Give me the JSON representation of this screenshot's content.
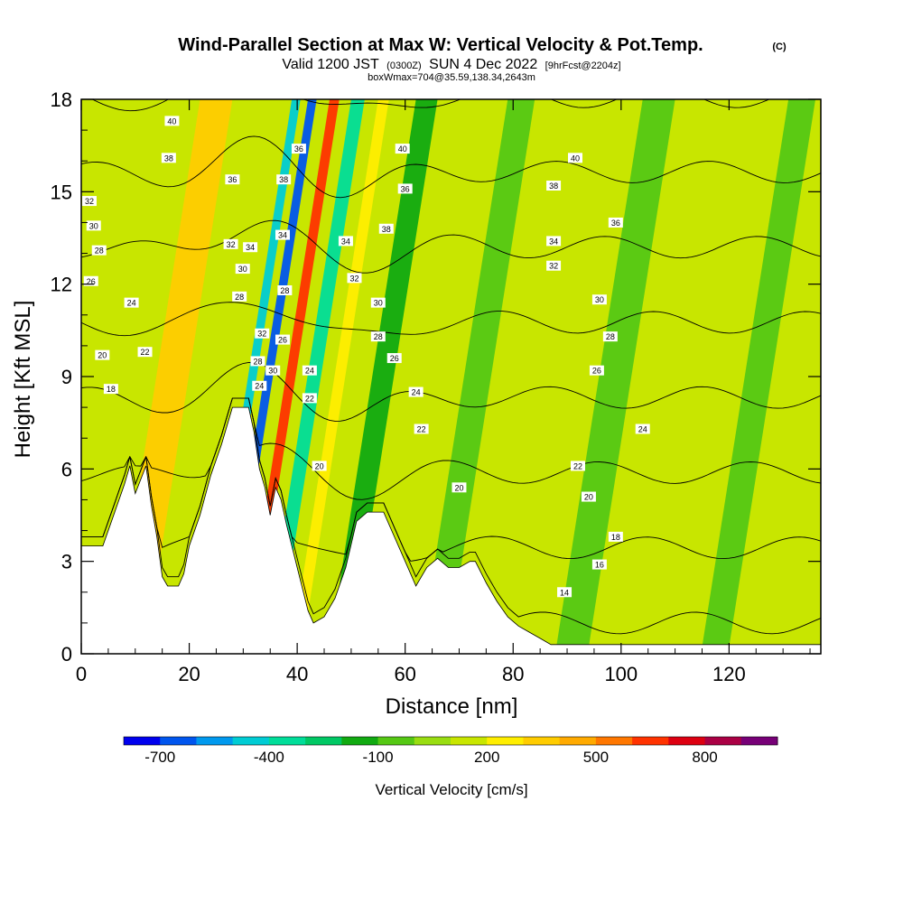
{
  "header": {
    "title_main": "Wind-Parallel Section at Max W: Vertical Velocity & Pot.Temp.",
    "title_mark": "(C)",
    "valid_a": "Valid 1200 JST",
    "valid_b": "(0300Z)",
    "valid_c": "SUN 4 Dec 2022",
    "valid_d": "[9hrFcst@2204z]",
    "boxline": "boxWmax=704@35.59,138.34,2643m"
  },
  "chart_data": {
    "type": "heatmap",
    "title": "Wind-Parallel Section at Max W: Vertical Velocity & Pot.Temp.",
    "xlabel": "Distance [nm]",
    "ylabel": "Height [Kft MSL]",
    "xlim": [
      0,
      137
    ],
    "ylim": [
      0,
      18
    ],
    "xticks": [
      "0",
      "20",
      "40",
      "60",
      "80",
      "100",
      "120"
    ],
    "yticks": [
      "0",
      "3",
      "6",
      "9",
      "12",
      "15",
      "18"
    ],
    "colorbar": {
      "label": "Vertical Velocity [cm/s]",
      "tick_labels": [
        "-700",
        "-400",
        "-100",
        "200",
        "500",
        "800"
      ],
      "colors": [
        "#0000ee",
        "#0055ee",
        "#0099ee",
        "#00ccd4",
        "#00dd99",
        "#00c864",
        "#11aa11",
        "#55c814",
        "#99dd11",
        "#c8e600",
        "#ffee00",
        "#ffcc00",
        "#ffaa00",
        "#ff7700",
        "#ff3300",
        "#dd0011",
        "#aa0044",
        "#770077"
      ]
    },
    "terrain": [
      [
        0,
        3.5
      ],
      [
        4,
        3.5
      ],
      [
        6,
        4.5
      ],
      [
        8,
        5.5
      ],
      [
        9,
        6.1
      ],
      [
        10,
        5.2
      ],
      [
        12,
        6.1
      ],
      [
        13,
        4.8
      ],
      [
        14,
        3.8
      ],
      [
        15,
        2.5
      ],
      [
        16,
        2.2
      ],
      [
        18,
        2.2
      ],
      [
        19,
        2.6
      ],
      [
        20,
        3.5
      ],
      [
        22,
        4.5
      ],
      [
        24,
        5.8
      ],
      [
        26,
        6.8
      ],
      [
        28,
        8.0
      ],
      [
        31,
        8.0
      ],
      [
        32,
        7.2
      ],
      [
        33,
        6.0
      ],
      [
        34,
        5.4
      ],
      [
        35,
        4.5
      ],
      [
        36,
        5.4
      ],
      [
        37,
        5.0
      ],
      [
        38,
        4.2
      ],
      [
        40,
        2.8
      ],
      [
        42,
        1.4
      ],
      [
        43,
        1.0
      ],
      [
        45,
        1.2
      ],
      [
        47,
        1.8
      ],
      [
        49,
        2.8
      ],
      [
        51,
        4.3
      ],
      [
        53,
        4.6
      ],
      [
        56,
        4.6
      ],
      [
        58,
        3.8
      ],
      [
        60,
        3.0
      ],
      [
        62,
        2.2
      ],
      [
        64,
        2.8
      ],
      [
        66,
        3.1
      ],
      [
        68,
        2.8
      ],
      [
        70,
        2.8
      ],
      [
        72,
        3.0
      ],
      [
        73,
        3.0
      ],
      [
        75,
        2.3
      ],
      [
        77,
        1.7
      ],
      [
        79,
        1.2
      ],
      [
        81,
        0.9
      ],
      [
        83,
        0.7
      ],
      [
        85,
        0.5
      ],
      [
        87,
        0.3
      ],
      [
        90,
        0.3
      ],
      [
        95,
        0.3
      ],
      [
        100,
        0.3
      ],
      [
        105,
        0.3
      ],
      [
        110,
        0.3
      ],
      [
        115,
        0.3
      ],
      [
        120,
        0.3
      ],
      [
        125,
        0.3
      ],
      [
        130,
        0.3
      ],
      [
        134,
        0.3
      ],
      [
        137,
        0.3
      ]
    ],
    "w_bands": [
      {
        "x": 13,
        "w": 6,
        "value": 300
      },
      {
        "x": 30,
        "w": 1.6,
        "value": -500
      },
      {
        "x": 33,
        "w": 1.6,
        "value": -650
      },
      {
        "x": 37,
        "w": 1.8,
        "value": 650
      },
      {
        "x": 41,
        "w": 2.5,
        "value": -400
      },
      {
        "x": 46,
        "w": 2.0,
        "value": 200
      },
      {
        "x": 53,
        "w": 4,
        "value": -150
      },
      {
        "x": 70,
        "w": 5,
        "value": -100
      },
      {
        "x": 95,
        "w": 6,
        "value": -100
      },
      {
        "x": 122,
        "w": 5,
        "value": -100
      }
    ],
    "theta_levels": [
      14,
      16,
      18,
      20,
      22,
      24,
      26,
      28,
      30,
      32,
      34,
      36,
      38,
      40
    ],
    "theta_labels": [
      {
        "x": 1.5,
        "y": 14.7,
        "text": "32"
      },
      {
        "x": 2.3,
        "y": 13.9,
        "text": "30"
      },
      {
        "x": 3.3,
        "y": 13.1,
        "text": "28"
      },
      {
        "x": 1.8,
        "y": 12.1,
        "text": "26"
      },
      {
        "x": 9.3,
        "y": 11.4,
        "text": "24"
      },
      {
        "x": 3.9,
        "y": 9.7,
        "text": "20"
      },
      {
        "x": 5.5,
        "y": 8.6,
        "text": "18"
      },
      {
        "x": 11.8,
        "y": 9.8,
        "text": "22"
      },
      {
        "x": 16.8,
        "y": 17.3,
        "text": "40"
      },
      {
        "x": 16.2,
        "y": 16.1,
        "text": "38"
      },
      {
        "x": 28.0,
        "y": 15.4,
        "text": "36"
      },
      {
        "x": 27.7,
        "y": 13.3,
        "text": "32"
      },
      {
        "x": 29.9,
        "y": 12.5,
        "text": "30"
      },
      {
        "x": 29.3,
        "y": 11.6,
        "text": "28"
      },
      {
        "x": 31.3,
        "y": 13.2,
        "text": "34"
      },
      {
        "x": 33.5,
        "y": 10.4,
        "text": "32"
      },
      {
        "x": 32.7,
        "y": 9.5,
        "text": "28"
      },
      {
        "x": 33.0,
        "y": 8.7,
        "text": "24"
      },
      {
        "x": 35.5,
        "y": 9.2,
        "text": "30"
      },
      {
        "x": 37.5,
        "y": 15.4,
        "text": "38"
      },
      {
        "x": 37.3,
        "y": 13.6,
        "text": "34"
      },
      {
        "x": 37.7,
        "y": 11.8,
        "text": "28"
      },
      {
        "x": 37.3,
        "y": 10.2,
        "text": "26"
      },
      {
        "x": 40.3,
        "y": 16.4,
        "text": "36"
      },
      {
        "x": 42.3,
        "y": 9.2,
        "text": "24"
      },
      {
        "x": 42.3,
        "y": 8.3,
        "text": "22"
      },
      {
        "x": 44.1,
        "y": 6.1,
        "text": "20"
      },
      {
        "x": 49.0,
        "y": 13.4,
        "text": "34"
      },
      {
        "x": 50.6,
        "y": 12.2,
        "text": "32"
      },
      {
        "x": 55.0,
        "y": 11.4,
        "text": "30"
      },
      {
        "x": 55.0,
        "y": 10.3,
        "text": "28"
      },
      {
        "x": 58.0,
        "y": 9.6,
        "text": "26"
      },
      {
        "x": 62.0,
        "y": 8.5,
        "text": "24"
      },
      {
        "x": 63.0,
        "y": 7.3,
        "text": "22"
      },
      {
        "x": 70.0,
        "y": 5.4,
        "text": "20"
      },
      {
        "x": 56.5,
        "y": 13.8,
        "text": "38"
      },
      {
        "x": 60.0,
        "y": 15.1,
        "text": "36"
      },
      {
        "x": 59.5,
        "y": 16.4,
        "text": "40"
      },
      {
        "x": 91.5,
        "y": 16.1,
        "text": "40"
      },
      {
        "x": 87.5,
        "y": 15.2,
        "text": "38"
      },
      {
        "x": 99.0,
        "y": 14.0,
        "text": "36"
      },
      {
        "x": 87.5,
        "y": 13.4,
        "text": "34"
      },
      {
        "x": 87.5,
        "y": 12.6,
        "text": "32"
      },
      {
        "x": 96.0,
        "y": 11.5,
        "text": "30"
      },
      {
        "x": 98.0,
        "y": 10.3,
        "text": "28"
      },
      {
        "x": 95.5,
        "y": 9.2,
        "text": "26"
      },
      {
        "x": 104.0,
        "y": 7.3,
        "text": "24"
      },
      {
        "x": 92.0,
        "y": 6.1,
        "text": "22"
      },
      {
        "x": 94.0,
        "y": 5.1,
        "text": "20"
      },
      {
        "x": 99.0,
        "y": 3.8,
        "text": "18"
      },
      {
        "x": 96.0,
        "y": 2.9,
        "text": "16"
      },
      {
        "x": 89.5,
        "y": 2.0,
        "text": "14"
      }
    ]
  }
}
